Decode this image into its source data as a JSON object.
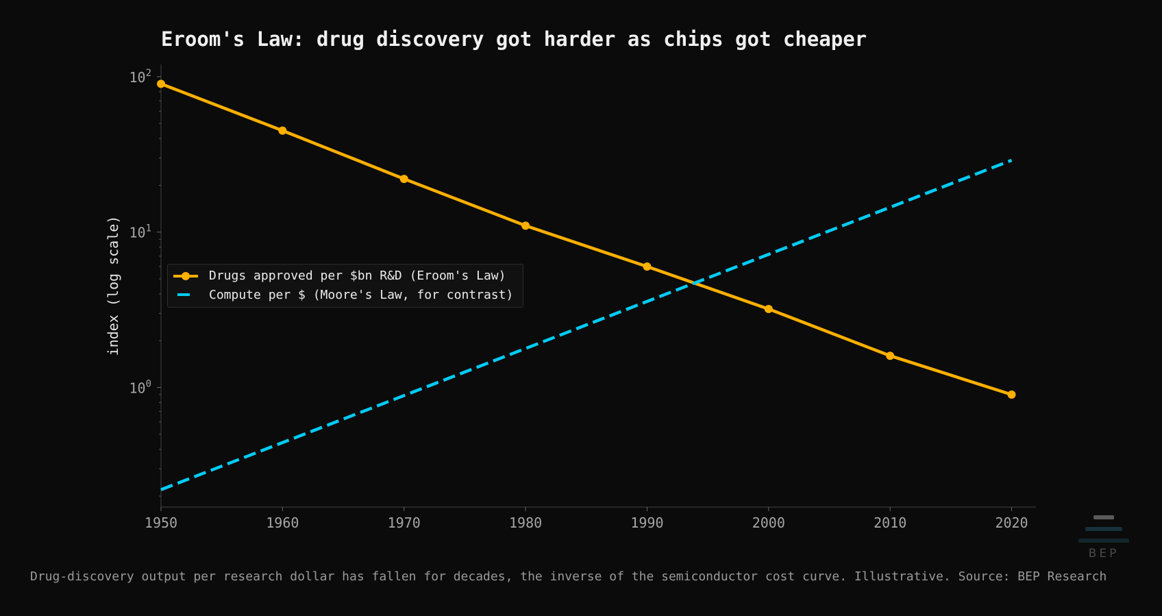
{
  "chart_data": {
    "type": "line",
    "title": "Eroom's Law: drug discovery got harder as chips got cheaper",
    "ylabel": "index (log scale)",
    "xlabel": "",
    "y_scale": "log",
    "xlim": [
      1950,
      2022
    ],
    "ylim": [
      0.17,
      120
    ],
    "x_ticks": [
      1950,
      1960,
      1970,
      1980,
      1990,
      2000,
      2010,
      2020
    ],
    "x_tick_labels": [
      "1950",
      "1960",
      "1970",
      "1980",
      "1990",
      "2000",
      "2010",
      "2020"
    ],
    "y_ticks": [
      1,
      10,
      100
    ],
    "y_tick_labels": [
      {
        "base": "10",
        "exp": "0"
      },
      {
        "base": "10",
        "exp": "1"
      },
      {
        "base": "10",
        "exp": "2"
      }
    ],
    "legend_position": "center-left",
    "series": [
      {
        "name": "Drugs approved per $bn R&D (Eroom's Law)",
        "color": "#ffb000",
        "style": "solid-markers",
        "x": [
          1950,
          1960,
          1970,
          1980,
          1990,
          2000,
          2010,
          2020
        ],
        "y": [
          90,
          45,
          22,
          11,
          6,
          3.2,
          1.6,
          0.9
        ]
      },
      {
        "name": "Compute per $ (Moore's Law, for contrast)",
        "color": "#00ccf5",
        "style": "dashed",
        "x": [
          1950,
          2020
        ],
        "y": [
          0.22,
          29
        ]
      }
    ]
  },
  "caption": "Drug-discovery output per research dollar has fallen for decades, the inverse of the semiconductor cost curve. Illustrative.  Source: BEP Research",
  "logo": {
    "text": "BEP"
  }
}
